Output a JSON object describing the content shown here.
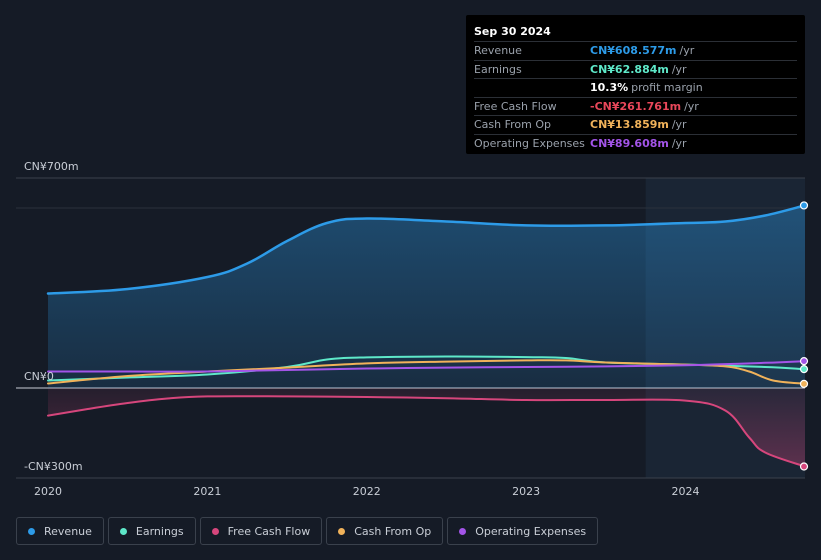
{
  "tooltip": {
    "date": "Sep 30 2024",
    "rows": [
      {
        "label": "Revenue",
        "value": "CN¥608.577m",
        "unit": "/yr",
        "color": "#2d9be8"
      },
      {
        "label": "Earnings",
        "value": "CN¥62.884m",
        "unit": "/yr",
        "color": "#5ee8c9"
      },
      {
        "label": "",
        "value": "10.3%",
        "unit": "profit margin",
        "color": "#ffffff"
      },
      {
        "label": "Free Cash Flow",
        "value": "-CN¥261.761m",
        "unit": "/yr",
        "color": "#e8475a"
      },
      {
        "label": "Cash From Op",
        "value": "CN¥13.859m",
        "unit": "/yr",
        "color": "#f0b25a"
      },
      {
        "label": "Operating Expenses",
        "value": "CN¥89.608m",
        "unit": "/yr",
        "color": "#a354e8"
      }
    ]
  },
  "legend": [
    {
      "label": "Revenue",
      "color": "#2d9be8"
    },
    {
      "label": "Earnings",
      "color": "#5ee8c9"
    },
    {
      "label": "Free Cash Flow",
      "color": "#d6467c"
    },
    {
      "label": "Cash From Op",
      "color": "#f0b25a"
    },
    {
      "label": "Operating Expenses",
      "color": "#a354e8"
    }
  ],
  "chart_data": {
    "type": "area",
    "y_tick_labels": [
      "CN¥700m",
      "CN¥0",
      "-CN¥300m"
    ],
    "ylim": [
      -300,
      700
    ],
    "x_tick_labels": [
      "2020",
      "2021",
      "2022",
      "2023",
      "2024"
    ],
    "xlim": [
      2019.8,
      2024.75
    ],
    "forecast_shade_start": 2023.75,
    "series": [
      {
        "name": "Revenue",
        "color": "#2d9be8",
        "fill": true,
        "x": [
          2020.0,
          2020.5,
          2021.0,
          2021.25,
          2021.5,
          2021.75,
          2022.0,
          2022.5,
          2023.0,
          2023.5,
          2024.0,
          2024.25,
          2024.5,
          2024.75
        ],
        "y": [
          315,
          330,
          370,
          415,
          490,
          550,
          565,
          555,
          542,
          542,
          550,
          555,
          575,
          608.577
        ]
      },
      {
        "name": "Earnings",
        "color": "#5ee8c9",
        "fill": false,
        "x": [
          2020.0,
          2020.5,
          2021.0,
          2021.5,
          2021.75,
          2022.0,
          2022.5,
          2023.0,
          2023.25,
          2023.5,
          2024.0,
          2024.5,
          2024.75
        ],
        "y": [
          25,
          35,
          45,
          70,
          95,
          102,
          105,
          103,
          100,
          85,
          78,
          70,
          62.884
        ]
      },
      {
        "name": "Free Cash Flow",
        "color": "#d6467c",
        "fill": true,
        "x": [
          2020.0,
          2020.25,
          2020.5,
          2020.75,
          2021.0,
          2021.5,
          2022.0,
          2022.5,
          2023.0,
          2023.5,
          2024.0,
          2024.25,
          2024.4,
          2024.5,
          2024.75
        ],
        "y": [
          -92,
          -70,
          -50,
          -35,
          -28,
          -28,
          -30,
          -34,
          -40,
          -40,
          -42,
          -75,
          -165,
          -215,
          -261.761
        ]
      },
      {
        "name": "Cash From Op",
        "color": "#f0b25a",
        "fill": false,
        "x": [
          2020.0,
          2020.5,
          2021.0,
          2021.5,
          2022.0,
          2022.5,
          2023.0,
          2023.25,
          2023.5,
          2024.0,
          2024.25,
          2024.4,
          2024.55,
          2024.75
        ],
        "y": [
          15,
          40,
          55,
          68,
          82,
          88,
          92,
          92,
          85,
          78,
          72,
          55,
          25,
          13.859
        ]
      },
      {
        "name": "Operating Expenses",
        "color": "#a354e8",
        "fill": false,
        "x": [
          2020.0,
          2020.5,
          2021.0,
          2021.5,
          2022.0,
          2022.5,
          2023.0,
          2023.5,
          2024.0,
          2024.5,
          2024.75
        ],
        "y": [
          55,
          55,
          55,
          60,
          65,
          68,
          70,
          72,
          76,
          84,
          89.608
        ]
      }
    ]
  }
}
